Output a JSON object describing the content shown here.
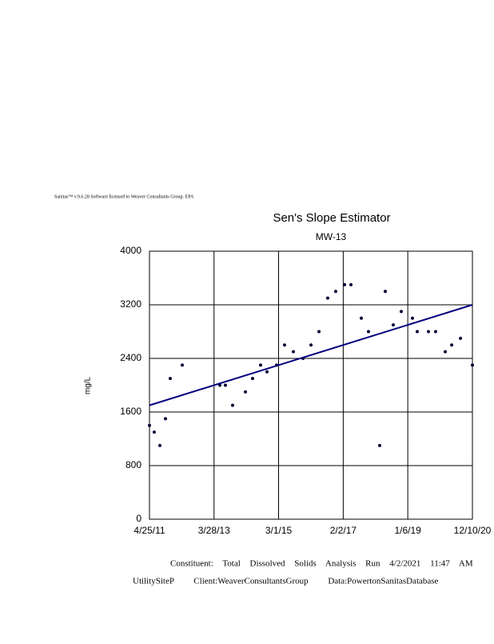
{
  "chart_data": {
    "type": "scatter",
    "header": "Sanitas™ v.9.6.28 Software licensed to Weaver Consultants Group. EPA",
    "title": "Sen's Slope Estimator",
    "subtitle": "MW-13",
    "ylabel": "mg/L",
    "footer": [
      "Constituent: Total Dissolved Solids Analysis Run 4/2/2021 11:47 AM",
      "UtilitySiteP Client:WeaverConsultantsGroup Data:PowertonSanitasDatabase"
    ],
    "x": [
      "4/25/11",
      "6/16/11",
      "8/16/11",
      "10/16/11",
      "12/7/11",
      "4/16/12",
      "5/30/13",
      "7/30/13",
      "10/16/13",
      "3/5/14",
      "5/22/14",
      "8/17/14",
      "10/26/14",
      "2/7/15",
      "5/5/15",
      "8/9/15",
      "11/22/15",
      "2/17/16",
      "5/14/16",
      "8/17/16",
      "11/12/16",
      "2/16/17",
      "4/27/17",
      "8/18/17",
      "11/4/17",
      "3/6/18",
      "5/6/18",
      "8/1/18",
      "10/27/18",
      "2/26/19",
      "4/19/19",
      "8/19/19",
      "11/5/19",
      "2/18/20",
      "4/28/20",
      "8/2/20",
      "12/10/20"
    ],
    "values": [
      1400,
      1300,
      1100,
      1500,
      2100,
      2300,
      2000,
      2000,
      1700,
      1900,
      2100,
      2300,
      2200,
      2300,
      2600,
      2500,
      2400,
      2600,
      2800,
      3300,
      3400,
      3500,
      3500,
      3000,
      2800,
      1100,
      3400,
      2900,
      3100,
      3000,
      2800,
      2800,
      2800,
      2500,
      2600,
      2700,
      2300
    ],
    "color": "#000033",
    "trend": {
      "x": [
        "4/25/11",
        "12/10/20"
      ],
      "values": [
        1700,
        3200
      ],
      "color": "#000080"
    },
    "xlim": [
      "4/25/11",
      "12/10/20"
    ],
    "xticks": [
      "4/25/11",
      "3/28/13",
      "3/1/15",
      "2/2/17",
      "1/6/19",
      "12/10/20"
    ],
    "ylim": [
      0,
      4000
    ],
    "yticks": [
      0,
      800,
      1600,
      2400,
      3200,
      4000
    ],
    "grid": true
  }
}
